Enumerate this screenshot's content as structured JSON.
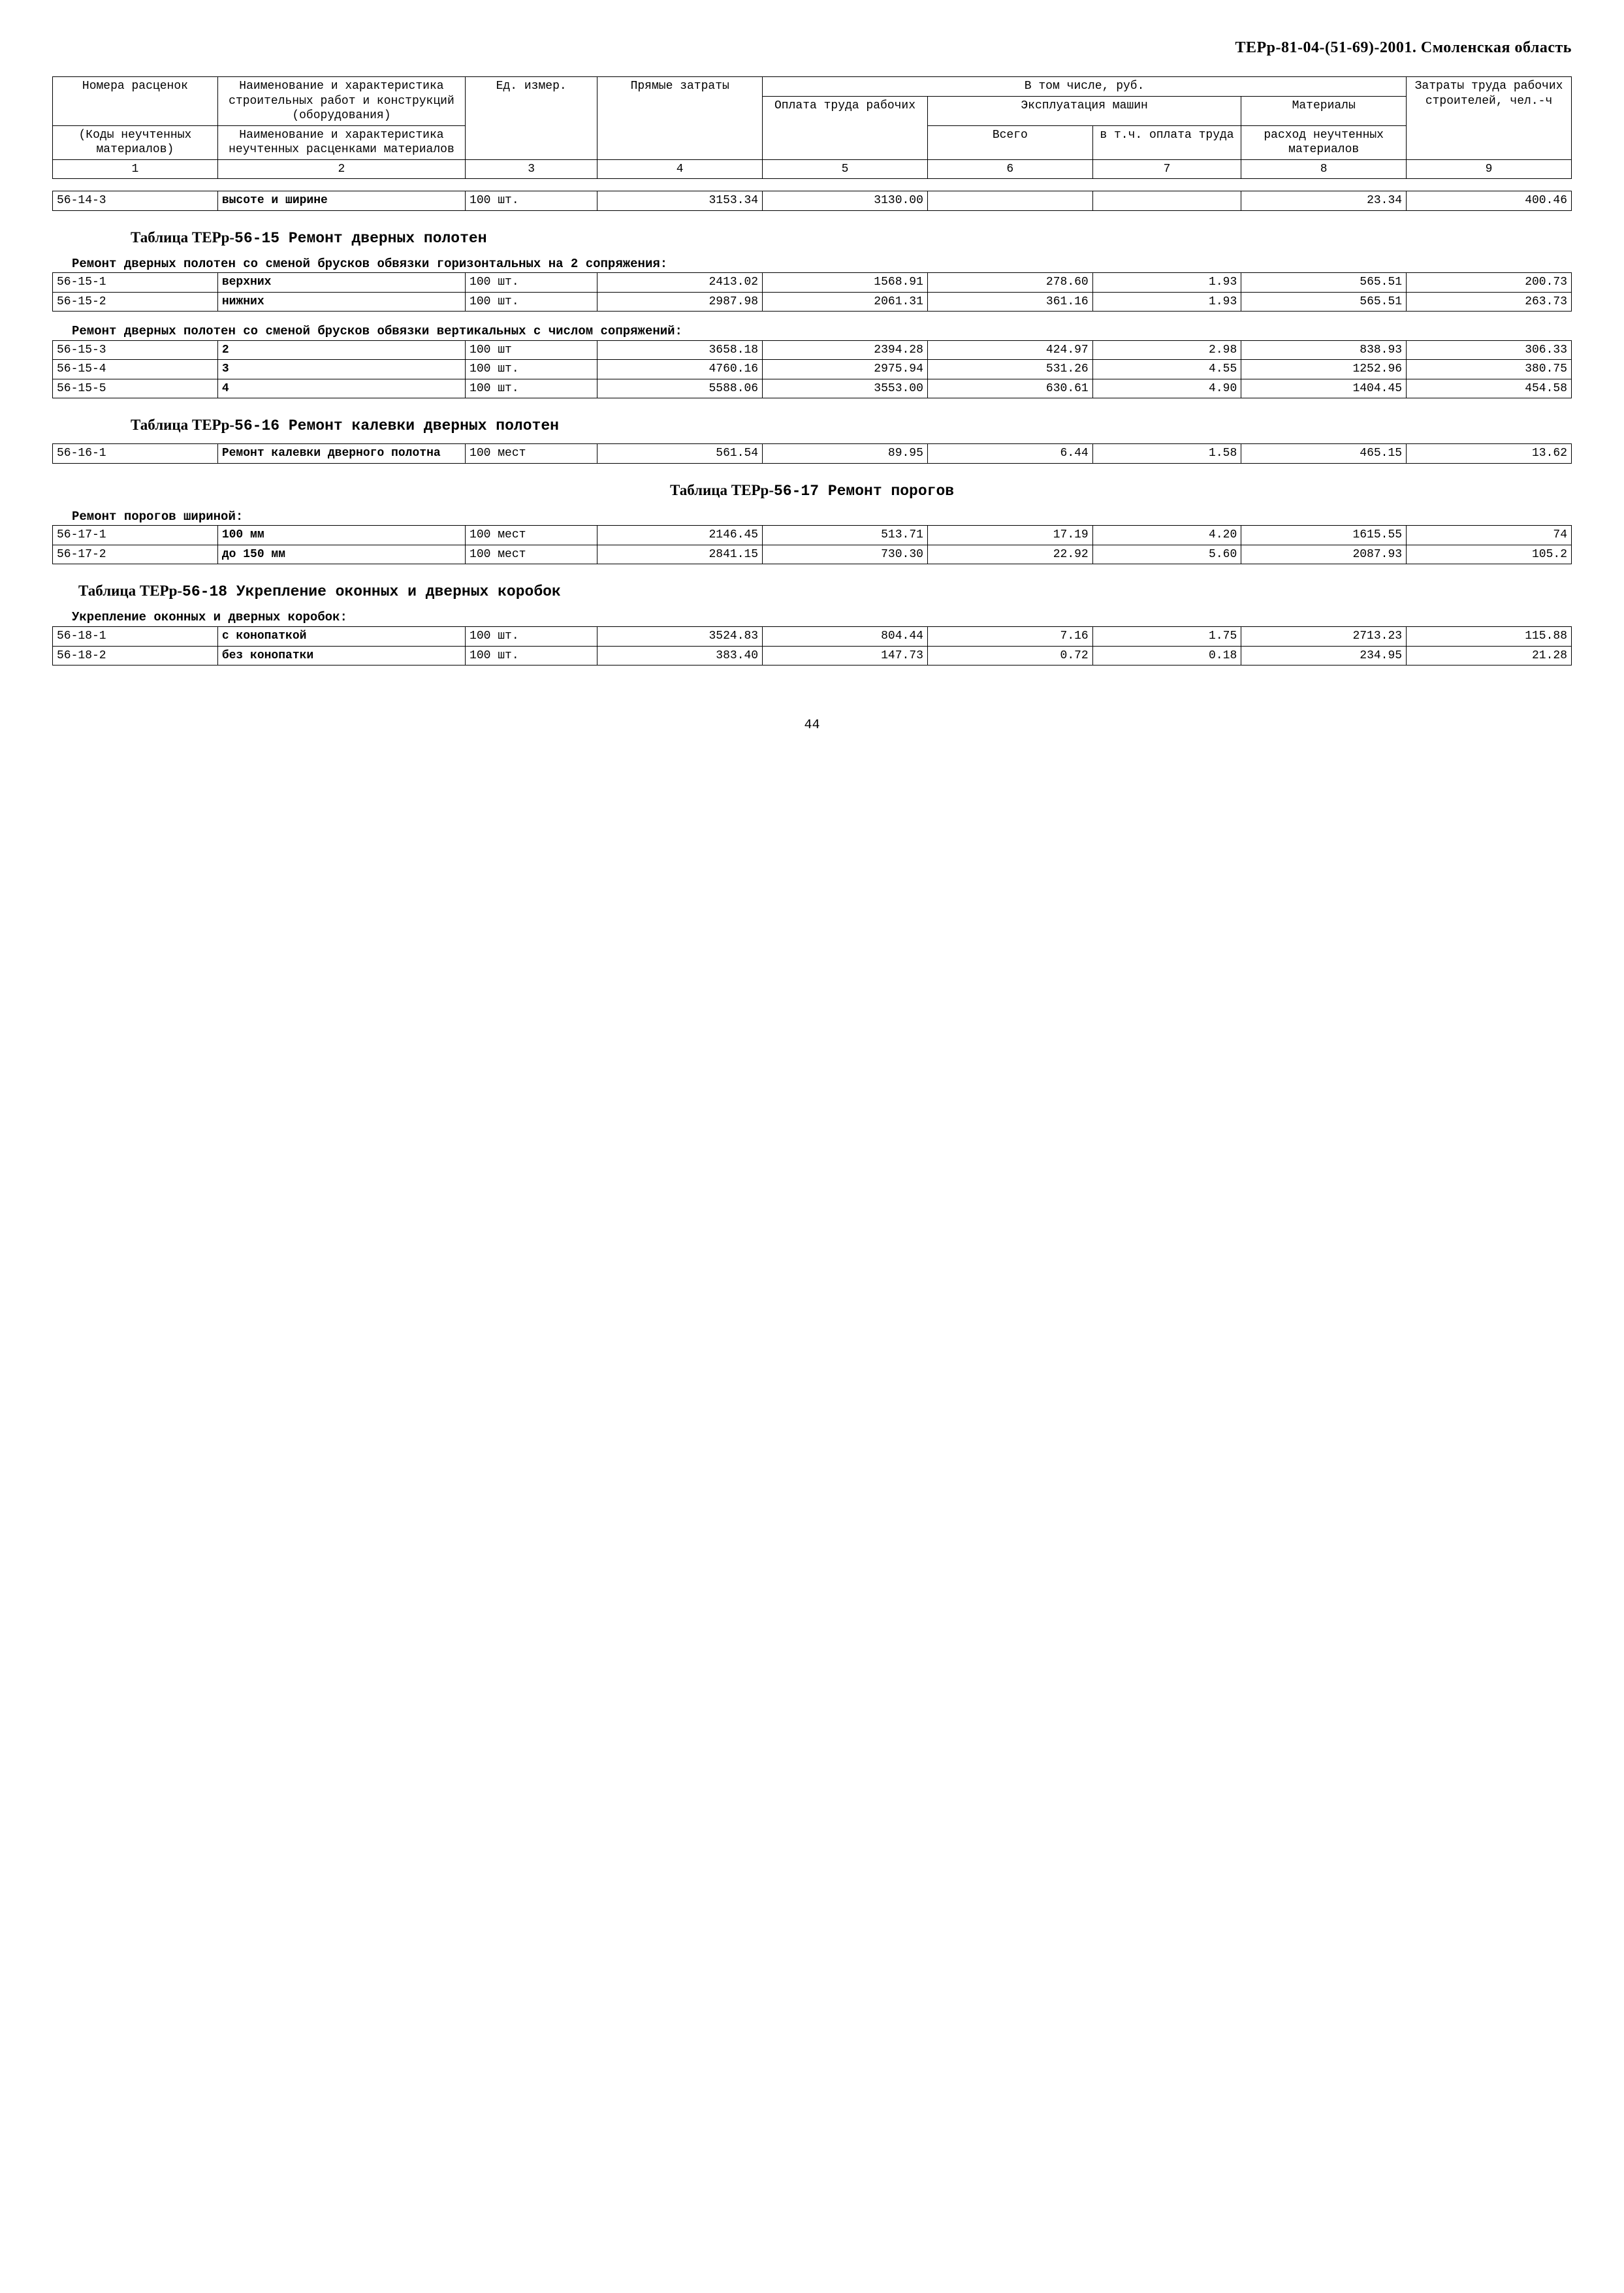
{
  "page_header": "ТЕРр-81-04-(51-69)-2001. Смоленская область",
  "page_number": "44",
  "header_table": {
    "r1": {
      "c1": "Номера расценок",
      "c2": "Наименование и характеристика строительных работ и конструкций (оборудования)",
      "c3": "Ед. измер.",
      "c4": "Прямые затраты",
      "c5": "В том числе, руб.",
      "c6": "Затраты труда рабочих строителей, чел.-ч"
    },
    "r2": {
      "c5": "Оплата труда рабочих",
      "c6": "Эксплуатация машин",
      "c7": "Материалы"
    },
    "r3": {
      "c1": "(Коды неучтенных материалов)",
      "c2": "Наименование и характеристика неучтенных расценками материалов",
      "c6": "Всего",
      "c7": "в т.ч. оплата труда",
      "c8": "расход неучтенных материалов"
    },
    "nums": {
      "c1": "1",
      "c2": "2",
      "c3": "3",
      "c4": "4",
      "c5": "5",
      "c6": "6",
      "c7": "7",
      "c8": "8",
      "c9": "9"
    }
  },
  "row_56_14_3": [
    "56-14-3",
    "высоте и ширине",
    "100 шт.",
    "3153.34",
    "3130.00",
    "",
    "",
    "23.34",
    "400.46"
  ],
  "title_15": {
    "serif": "Таблица ТЕРр-",
    "mono": "56-15  Ремонт дверных полотен"
  },
  "caption_15a": "Ремонт дверных полотен со сменой брусков обвязки горизонтальных на 2 сопряжения:",
  "rows_15a": [
    [
      "56-15-1",
      "верхних",
      "100 шт.",
      "2413.02",
      "1568.91",
      "278.60",
      "1.93",
      "565.51",
      "200.73"
    ],
    [
      "56-15-2",
      "нижних",
      "100 шт.",
      "2987.98",
      "2061.31",
      "361.16",
      "1.93",
      "565.51",
      "263.73"
    ]
  ],
  "caption_15b": "Ремонт дверных полотен со сменой брусков обвязки вертикальных с числом сопряжений:",
  "rows_15b": [
    [
      "56-15-3",
      "2",
      "100 шт",
      "3658.18",
      "2394.28",
      "424.97",
      "2.98",
      "838.93",
      "306.33"
    ],
    [
      "56-15-4",
      "3",
      "100 шт.",
      "4760.16",
      "2975.94",
      "531.26",
      "4.55",
      "1252.96",
      "380.75"
    ],
    [
      "56-15-5",
      "4",
      "100 шт.",
      "5588.06",
      "3553.00",
      "630.61",
      "4.90",
      "1404.45",
      "454.58"
    ]
  ],
  "title_16": {
    "serif": "Таблица ТЕРр-",
    "mono": "56-16  Ремонт калевки дверных полотен"
  },
  "rows_16": [
    [
      "56-16-1",
      "Ремонт калевки дверного полотна",
      "100 мест",
      "561.54",
      "89.95",
      "6.44",
      "1.58",
      "465.15",
      "13.62"
    ]
  ],
  "title_17": {
    "serif": "Таблица ТЕРр-",
    "mono": "56-17  Ремонт порогов"
  },
  "caption_17": "Ремонт порогов шириной:",
  "rows_17": [
    [
      "56-17-1",
      "100 мм",
      "100 мест",
      "2146.45",
      "513.71",
      "17.19",
      "4.20",
      "1615.55",
      "74"
    ],
    [
      "56-17-2",
      "до 150 мм",
      "100 мест",
      "2841.15",
      "730.30",
      "22.92",
      "5.60",
      "2087.93",
      "105.2"
    ]
  ],
  "title_18": {
    "serif": "Таблица ТЕРр-",
    "mono": "56-18  Укрепление оконных и дверных коробок"
  },
  "caption_18": "Укрепление оконных и дверных коробок:",
  "rows_18": [
    [
      "56-18-1",
      "с конопаткой",
      "100 шт.",
      "3524.83",
      "804.44",
      "7.16",
      "1.75",
      "2713.23",
      "115.88"
    ],
    [
      "56-18-2",
      "без конопатки",
      "100 шт.",
      "383.40",
      "147.73",
      "0.72",
      "0.18",
      "234.95",
      "21.28"
    ]
  ]
}
